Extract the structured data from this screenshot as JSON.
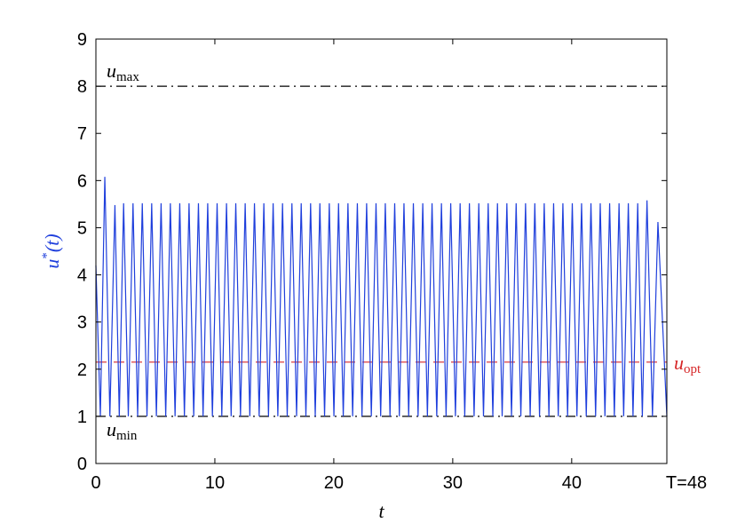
{
  "chart_data": {
    "type": "line",
    "title": "",
    "xlabel": "t",
    "ylabel": {
      "base": "u",
      "sup": "*",
      "rest": "(t)"
    },
    "xlim": [
      0,
      48
    ],
    "ylim": [
      0,
      9
    ],
    "xticks": [
      0,
      10,
      20,
      30,
      40
    ],
    "yticks": [
      0,
      1,
      2,
      3,
      4,
      5,
      6,
      7,
      8,
      9
    ],
    "end_label": "T=48",
    "grid": false,
    "series": [
      {
        "color": "#1f3fdc",
        "style": "solid",
        "start": {
          "x": 0.0,
          "y": 4.2
        },
        "peaks": [
          {
            "x": 0.75,
            "y": 6.08
          },
          {
            "x": 1.6,
            "y": 5.48
          },
          {
            "x": 2.33,
            "y": 5.52
          },
          {
            "x": 3.12,
            "y": 5.52
          },
          {
            "x": 3.9,
            "y": 5.52
          },
          {
            "x": 4.69,
            "y": 5.52
          },
          {
            "x": 5.48,
            "y": 5.52
          },
          {
            "x": 6.26,
            "y": 5.52
          },
          {
            "x": 7.05,
            "y": 5.52
          },
          {
            "x": 7.83,
            "y": 5.52
          },
          {
            "x": 8.62,
            "y": 5.52
          },
          {
            "x": 9.4,
            "y": 5.52
          },
          {
            "x": 10.19,
            "y": 5.52
          },
          {
            "x": 10.98,
            "y": 5.52
          },
          {
            "x": 11.76,
            "y": 5.52
          },
          {
            "x": 12.55,
            "y": 5.52
          },
          {
            "x": 13.33,
            "y": 5.52
          },
          {
            "x": 14.12,
            "y": 5.52
          },
          {
            "x": 14.9,
            "y": 5.52
          },
          {
            "x": 15.69,
            "y": 5.52
          },
          {
            "x": 16.48,
            "y": 5.52
          },
          {
            "x": 17.26,
            "y": 5.52
          },
          {
            "x": 18.05,
            "y": 5.52
          },
          {
            "x": 18.83,
            "y": 5.52
          },
          {
            "x": 19.62,
            "y": 5.52
          },
          {
            "x": 20.4,
            "y": 5.52
          },
          {
            "x": 21.19,
            "y": 5.52
          },
          {
            "x": 21.98,
            "y": 5.52
          },
          {
            "x": 22.76,
            "y": 5.52
          },
          {
            "x": 23.55,
            "y": 5.52
          },
          {
            "x": 24.33,
            "y": 5.52
          },
          {
            "x": 25.12,
            "y": 5.52
          },
          {
            "x": 25.9,
            "y": 5.52
          },
          {
            "x": 26.69,
            "y": 5.52
          },
          {
            "x": 27.48,
            "y": 5.52
          },
          {
            "x": 28.26,
            "y": 5.52
          },
          {
            "x": 29.05,
            "y": 5.52
          },
          {
            "x": 29.83,
            "y": 5.52
          },
          {
            "x": 30.62,
            "y": 5.52
          },
          {
            "x": 31.4,
            "y": 5.52
          },
          {
            "x": 32.19,
            "y": 5.52
          },
          {
            "x": 32.98,
            "y": 5.52
          },
          {
            "x": 33.76,
            "y": 5.52
          },
          {
            "x": 34.55,
            "y": 5.52
          },
          {
            "x": 35.33,
            "y": 5.52
          },
          {
            "x": 36.12,
            "y": 5.52
          },
          {
            "x": 36.9,
            "y": 5.52
          },
          {
            "x": 37.69,
            "y": 5.52
          },
          {
            "x": 38.48,
            "y": 5.52
          },
          {
            "x": 39.26,
            "y": 5.52
          },
          {
            "x": 40.05,
            "y": 5.52
          },
          {
            "x": 40.83,
            "y": 5.52
          },
          {
            "x": 41.62,
            "y": 5.52
          },
          {
            "x": 42.4,
            "y": 5.52
          },
          {
            "x": 43.19,
            "y": 5.52
          },
          {
            "x": 43.98,
            "y": 5.52
          },
          {
            "x": 44.76,
            "y": 5.52
          },
          {
            "x": 45.55,
            "y": 5.52
          },
          {
            "x": 46.33,
            "y": 5.58
          },
          {
            "x": 47.25,
            "y": 5.12
          }
        ],
        "trough_y": 1.0,
        "end": {
          "x": 48.0,
          "y": 1.0
        }
      }
    ],
    "reference_lines": [
      {
        "id": "u-max",
        "y": 8.0,
        "style": "dashdot",
        "color": "#000000",
        "label": {
          "base": "u",
          "sub": "max"
        },
        "label_position": "above-left"
      },
      {
        "id": "u-min",
        "y": 1.0,
        "style": "dashdot",
        "color": "#000000",
        "label": {
          "base": "u",
          "sub": "min"
        },
        "label_position": "below-left"
      },
      {
        "id": "u-opt",
        "y": 2.15,
        "style": "dashed",
        "color": "#d62728",
        "label": {
          "base": "u",
          "sub": "opt"
        },
        "label_position": "right-outside"
      }
    ]
  }
}
